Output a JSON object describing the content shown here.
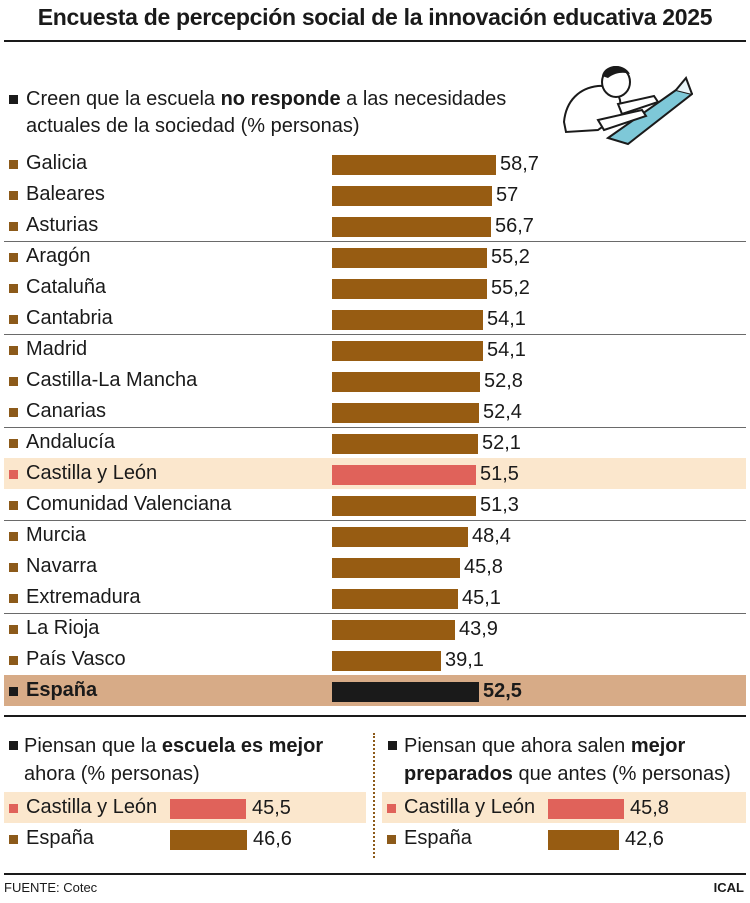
{
  "title": "Encuesta de percepción social de la innovación educativa 2025",
  "main_heading": {
    "part1": "Creen que la escuela ",
    "bold": "no responde",
    "part2": " a las necesidades actuales de la sociedad (% personas)"
  },
  "left_heading": {
    "part1": "Piensan que la ",
    "bold": "escuela es mejor",
    "part2": " ahora (% personas)"
  },
  "right_heading": {
    "part1": "Piensan que ahora salen ",
    "bold": "mejor preparados",
    "part2": " que antes (% personas)"
  },
  "source": "FUENTE: Cotec",
  "credit": "ICAL",
  "colors": {
    "bar": "#975c12",
    "highlight_bar": "#e0625a",
    "highlight_bg": "#fbe7cd",
    "total_bar": "#1a1a1a",
    "total_bg": "#d7ab87"
  },
  "icons": {
    "illustration": "person-with-laptop-illustration"
  },
  "chart_data": [
    {
      "type": "bar",
      "orientation": "horizontal",
      "title": "Creen que la escuela no responde a las necesidades actuales de la sociedad (% personas)",
      "categories": [
        "Galicia",
        "Baleares",
        "Asturias",
        "Aragón",
        "Cataluña",
        "Cantabria",
        "Madrid",
        "Castilla-La Mancha",
        "Canarias",
        "Andalucía",
        "Castilla y León",
        "Comunidad Valenciana",
        "Murcia",
        "Navarra",
        "Extremadura",
        "La Rioja",
        "País Vasco",
        "España"
      ],
      "values": [
        58.7,
        57,
        56.7,
        55.2,
        55.2,
        54.1,
        54.1,
        52.8,
        52.4,
        52.1,
        51.5,
        51.3,
        48.4,
        45.8,
        45.1,
        43.9,
        39.1,
        52.5
      ],
      "value_labels": [
        "58,7",
        "57",
        "56,7",
        "55,2",
        "55,2",
        "54,1",
        "54,1",
        "52,8",
        "52,4",
        "52,1",
        "51,5",
        "51,3",
        "48,4",
        "45,8",
        "45,1",
        "43,9",
        "39,1",
        "52,5"
      ],
      "highlight": "Castilla y León",
      "total": "España",
      "xlim": [
        0,
        60
      ]
    },
    {
      "type": "bar",
      "orientation": "horizontal",
      "title": "Piensan que la escuela es mejor ahora (% personas)",
      "categories": [
        "Castilla y León",
        "España"
      ],
      "values": [
        45.5,
        46.6
      ],
      "value_labels": [
        "45,5",
        "46,6"
      ],
      "highlight": "Castilla y León"
    },
    {
      "type": "bar",
      "orientation": "horizontal",
      "title": "Piensan que ahora salen mejor preparados que antes (% personas)",
      "categories": [
        "Castilla y León",
        "España"
      ],
      "values": [
        45.8,
        42.6
      ],
      "value_labels": [
        "45,8",
        "42,6"
      ],
      "highlight": "Castilla y León"
    }
  ]
}
